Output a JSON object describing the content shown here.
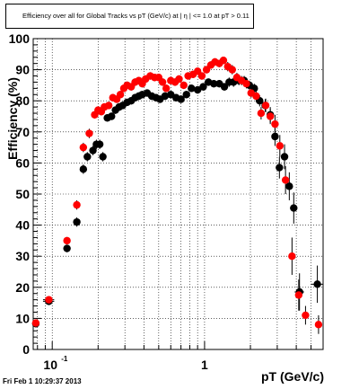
{
  "chart_data": {
    "type": "scatter",
    "title": "Efficiency over all for Global Tracks vs pT (GeV/c) at |   η | <= 1.0 at pT > 0.11",
    "xlabel": "pT (GeV/c)",
    "ylabel": "Efficiency (%)",
    "xscale": "log",
    "xlim": [
      0.075,
      6.0
    ],
    "ylim": [
      0,
      100
    ],
    "grid": true,
    "x_ticks": [
      {
        "value": 0.1,
        "base": "10",
        "exp": "-1"
      },
      {
        "value": 1,
        "label": "1"
      }
    ],
    "y_ticks": [
      0,
      10,
      20,
      30,
      40,
      50,
      60,
      70,
      80,
      90,
      100
    ],
    "series": [
      {
        "color": "#000000",
        "points": [
          [
            0.078,
            8.3,
            0,
            1.2
          ],
          [
            0.095,
            15.5,
            0.008,
            1.2
          ],
          [
            0.125,
            32.5,
            0,
            1.2
          ],
          [
            0.145,
            41.0,
            0,
            1.5
          ],
          [
            0.16,
            58.0,
            0,
            1.5
          ],
          [
            0.17,
            62.0,
            0,
            1.5
          ],
          [
            0.185,
            64.0,
            0,
            1.5
          ],
          [
            0.195,
            66.0,
            0,
            1.5
          ],
          [
            0.205,
            66.0,
            0,
            1.5
          ],
          [
            0.215,
            62.0,
            0,
            1.5
          ],
          [
            0.23,
            74.5,
            0,
            1.2
          ],
          [
            0.245,
            75.0,
            0,
            1.2
          ],
          [
            0.26,
            77.0,
            0,
            1.2
          ],
          [
            0.275,
            78.0,
            0,
            1.2
          ],
          [
            0.29,
            78.5,
            0,
            1.2
          ],
          [
            0.31,
            79.5,
            0,
            1.2
          ],
          [
            0.33,
            80.0,
            0,
            1.2
          ],
          [
            0.35,
            81.0,
            0,
            1.2
          ],
          [
            0.37,
            81.5,
            0,
            1.2
          ],
          [
            0.39,
            82.0,
            0,
            1.2
          ],
          [
            0.42,
            82.5,
            0,
            1.2
          ],
          [
            0.45,
            81.5,
            0,
            1.2
          ],
          [
            0.48,
            81.0,
            0,
            1.2
          ],
          [
            0.51,
            80.5,
            0,
            1.2
          ],
          [
            0.55,
            81.5,
            0,
            1.2
          ],
          [
            0.6,
            82.0,
            0,
            1.2
          ],
          [
            0.65,
            81.0,
            0,
            1.2
          ],
          [
            0.7,
            80.5,
            0,
            1.2
          ],
          [
            0.76,
            82.0,
            0,
            1.2
          ],
          [
            0.82,
            84.0,
            0,
            1.2
          ],
          [
            0.9,
            83.5,
            0,
            1.2
          ],
          [
            0.98,
            84.5,
            0,
            1.2
          ],
          [
            1.06,
            86.0,
            0,
            1.2
          ],
          [
            1.15,
            85.5,
            0,
            1.2
          ],
          [
            1.25,
            85.5,
            0,
            1.2
          ],
          [
            1.35,
            84.5,
            0,
            1.2
          ],
          [
            1.45,
            86.0,
            0,
            1.5
          ],
          [
            1.55,
            86.0,
            0,
            1.5
          ],
          [
            1.68,
            86.5,
            0,
            1.5
          ],
          [
            1.82,
            86.5,
            0,
            1.5
          ],
          [
            1.97,
            85.0,
            0,
            1.5
          ],
          [
            2.12,
            84.0,
            0,
            1.5
          ],
          [
            2.3,
            80.0,
            0,
            1.8
          ],
          [
            2.5,
            78.5,
            0,
            2.0
          ],
          [
            2.7,
            75.5,
            0,
            2.5
          ],
          [
            2.9,
            68.5,
            0,
            3.0
          ],
          [
            3.1,
            58.5,
            0,
            3.5
          ],
          [
            3.35,
            62.0,
            0,
            4.0
          ],
          [
            3.6,
            52.5,
            0,
            4.5
          ],
          [
            3.85,
            45.5,
            0,
            5.0
          ],
          [
            4.2,
            18.5,
            0.3,
            6.0
          ],
          [
            5.5,
            21.0,
            0.5,
            6.0
          ]
        ]
      },
      {
        "color": "#ff0000",
        "points": [
          [
            0.078,
            8.5,
            0,
            1.2
          ],
          [
            0.095,
            16.0,
            0.008,
            1.2
          ],
          [
            0.125,
            35.0,
            0,
            1.2
          ],
          [
            0.145,
            46.5,
            0,
            1.5
          ],
          [
            0.16,
            65.0,
            0,
            1.5
          ],
          [
            0.175,
            69.5,
            0,
            1.5
          ],
          [
            0.19,
            75.5,
            0,
            1.2
          ],
          [
            0.2,
            77.0,
            0,
            1.2
          ],
          [
            0.21,
            76.5,
            0,
            1.2
          ],
          [
            0.22,
            78.0,
            0,
            1.2
          ],
          [
            0.235,
            78.5,
            0,
            1.2
          ],
          [
            0.25,
            81.0,
            0,
            1.2
          ],
          [
            0.265,
            80.5,
            0,
            1.2
          ],
          [
            0.28,
            82.0,
            0,
            1.2
          ],
          [
            0.295,
            84.0,
            0,
            1.2
          ],
          [
            0.31,
            85.0,
            0,
            1.2
          ],
          [
            0.33,
            84.5,
            0,
            1.2
          ],
          [
            0.35,
            86.0,
            0,
            1.2
          ],
          [
            0.37,
            86.5,
            0,
            1.2
          ],
          [
            0.39,
            85.5,
            0,
            1.2
          ],
          [
            0.41,
            87.0,
            0,
            1.2
          ],
          [
            0.44,
            88.0,
            0,
            1.2
          ],
          [
            0.47,
            87.5,
            0,
            1.2
          ],
          [
            0.5,
            87.5,
            0,
            1.2
          ],
          [
            0.53,
            86.0,
            0,
            1.2
          ],
          [
            0.56,
            84.0,
            0,
            1.2
          ],
          [
            0.6,
            86.5,
            0,
            1.2
          ],
          [
            0.64,
            86.0,
            0,
            1.2
          ],
          [
            0.68,
            87.0,
            0,
            1.2
          ],
          [
            0.73,
            85.0,
            0,
            1.2
          ],
          [
            0.78,
            88.0,
            0,
            1.2
          ],
          [
            0.84,
            88.5,
            0,
            1.2
          ],
          [
            0.9,
            89.5,
            0,
            1.2
          ],
          [
            0.96,
            88.0,
            0,
            1.2
          ],
          [
            1.03,
            90.0,
            0,
            1.2
          ],
          [
            1.1,
            91.5,
            0,
            1.2
          ],
          [
            1.17,
            92.5,
            0,
            1.2
          ],
          [
            1.25,
            92.0,
            0,
            1.2
          ],
          [
            1.33,
            93.0,
            0,
            1.2
          ],
          [
            1.42,
            91.0,
            0,
            1.5
          ],
          [
            1.52,
            90.0,
            0,
            1.5
          ],
          [
            1.63,
            87.5,
            0,
            1.5
          ],
          [
            1.75,
            86.5,
            0,
            1.5
          ],
          [
            1.88,
            85.5,
            0,
            1.5
          ],
          [
            2.02,
            82.5,
            0,
            1.5
          ],
          [
            2.18,
            81.5,
            0,
            1.8
          ],
          [
            2.35,
            76.0,
            0,
            2.0
          ],
          [
            2.52,
            78.5,
            0,
            2.2
          ],
          [
            2.7,
            75.0,
            0,
            2.5
          ],
          [
            2.9,
            72.5,
            0,
            3.0
          ],
          [
            3.12,
            65.5,
            0,
            3.5
          ],
          [
            3.4,
            54.5,
            0,
            4.5
          ],
          [
            3.75,
            30.0,
            0,
            6.0
          ],
          [
            4.15,
            17.5,
            0,
            5.0
          ],
          [
            4.6,
            11.0,
            0,
            3.0
          ],
          [
            5.6,
            8.0,
            0,
            3.0
          ]
        ]
      }
    ]
  },
  "footer": {
    "timestamp": "Fri Feb  1 10:29:37 2013"
  }
}
